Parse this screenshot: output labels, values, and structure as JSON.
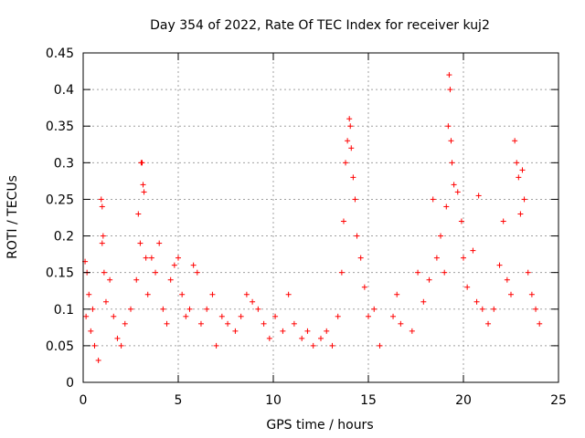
{
  "chart_data": {
    "type": "scatter",
    "title": "Day 354 of 2022, Rate Of TEC Index for receiver kuj2",
    "xlabel": "GPS time / hours",
    "ylabel": "ROTI / TECUs",
    "xlim": [
      0,
      25
    ],
    "ylim": [
      0,
      0.45
    ],
    "xticks": [
      0,
      5,
      10,
      15,
      20,
      25
    ],
    "xtick_labels": [
      "0",
      "5",
      "10",
      "15",
      "20",
      "25"
    ],
    "yticks": [
      0,
      0.05,
      0.1,
      0.15,
      0.2,
      0.25,
      0.3,
      0.35,
      0.4,
      0.45
    ],
    "ytick_labels": [
      "0",
      "0.05",
      "0.1",
      "0.15",
      "0.2",
      "0.25",
      "0.3",
      "0.35",
      "0.4",
      "0.45"
    ],
    "grid": true,
    "marker": "+",
    "marker_color": "#ff0000",
    "series": [
      {
        "name": "ROTI",
        "points": [
          [
            0.1,
            0.165
          ],
          [
            0.2,
            0.15
          ],
          [
            0.3,
            0.12
          ],
          [
            0.15,
            0.09
          ],
          [
            0.4,
            0.07
          ],
          [
            0.5,
            0.1
          ],
          [
            0.6,
            0.05
          ],
          [
            0.8,
            0.03
          ],
          [
            0.95,
            0.25
          ],
          [
            1.0,
            0.24
          ],
          [
            1.05,
            0.2
          ],
          [
            1.0,
            0.19
          ],
          [
            1.1,
            0.15
          ],
          [
            1.2,
            0.11
          ],
          [
            1.4,
            0.14
          ],
          [
            1.6,
            0.09
          ],
          [
            1.8,
            0.06
          ],
          [
            2.0,
            0.05
          ],
          [
            2.2,
            0.08
          ],
          [
            2.5,
            0.1
          ],
          [
            2.8,
            0.14
          ],
          [
            2.9,
            0.23
          ],
          [
            3.0,
            0.19
          ],
          [
            3.05,
            0.3
          ],
          [
            3.1,
            0.3
          ],
          [
            3.15,
            0.27
          ],
          [
            3.2,
            0.26
          ],
          [
            3.3,
            0.17
          ],
          [
            3.4,
            0.12
          ],
          [
            3.6,
            0.17
          ],
          [
            3.8,
            0.15
          ],
          [
            4.0,
            0.19
          ],
          [
            4.2,
            0.1
          ],
          [
            4.4,
            0.08
          ],
          [
            4.6,
            0.14
          ],
          [
            4.8,
            0.16
          ],
          [
            5.0,
            0.17
          ],
          [
            5.2,
            0.12
          ],
          [
            5.4,
            0.09
          ],
          [
            5.6,
            0.1
          ],
          [
            5.8,
            0.16
          ],
          [
            6.0,
            0.15
          ],
          [
            6.2,
            0.08
          ],
          [
            6.5,
            0.1
          ],
          [
            6.8,
            0.12
          ],
          [
            7.0,
            0.05
          ],
          [
            7.3,
            0.09
          ],
          [
            7.6,
            0.08
          ],
          [
            8.0,
            0.07
          ],
          [
            8.3,
            0.09
          ],
          [
            8.6,
            0.12
          ],
          [
            8.9,
            0.11
          ],
          [
            9.2,
            0.1
          ],
          [
            9.5,
            0.08
          ],
          [
            9.8,
            0.06
          ],
          [
            10.1,
            0.09
          ],
          [
            10.5,
            0.07
          ],
          [
            10.8,
            0.12
          ],
          [
            11.1,
            0.08
          ],
          [
            11.5,
            0.06
          ],
          [
            11.8,
            0.07
          ],
          [
            12.1,
            0.05
          ],
          [
            12.5,
            0.06
          ],
          [
            12.8,
            0.07
          ],
          [
            13.1,
            0.05
          ],
          [
            13.4,
            0.09
          ],
          [
            13.6,
            0.15
          ],
          [
            13.7,
            0.22
          ],
          [
            13.8,
            0.3
          ],
          [
            13.9,
            0.33
          ],
          [
            14.0,
            0.36
          ],
          [
            14.05,
            0.35
          ],
          [
            14.1,
            0.32
          ],
          [
            14.2,
            0.28
          ],
          [
            14.3,
            0.25
          ],
          [
            14.4,
            0.2
          ],
          [
            14.6,
            0.17
          ],
          [
            14.8,
            0.13
          ],
          [
            15.0,
            0.09
          ],
          [
            15.3,
            0.1
          ],
          [
            15.6,
            0.05
          ],
          [
            16.3,
            0.09
          ],
          [
            16.5,
            0.12
          ],
          [
            16.7,
            0.08
          ],
          [
            17.3,
            0.07
          ],
          [
            17.6,
            0.15
          ],
          [
            17.9,
            0.11
          ],
          [
            18.2,
            0.14
          ],
          [
            18.4,
            0.25
          ],
          [
            18.6,
            0.17
          ],
          [
            18.8,
            0.2
          ],
          [
            19.0,
            0.15
          ],
          [
            19.1,
            0.24
          ],
          [
            19.2,
            0.35
          ],
          [
            19.25,
            0.42
          ],
          [
            19.3,
            0.4
          ],
          [
            19.35,
            0.33
          ],
          [
            19.4,
            0.3
          ],
          [
            19.5,
            0.27
          ],
          [
            19.7,
            0.26
          ],
          [
            19.9,
            0.22
          ],
          [
            20.0,
            0.17
          ],
          [
            20.2,
            0.13
          ],
          [
            20.5,
            0.18
          ],
          [
            20.7,
            0.11
          ],
          [
            20.8,
            0.255
          ],
          [
            21.0,
            0.1
          ],
          [
            21.3,
            0.08
          ],
          [
            21.6,
            0.1
          ],
          [
            21.9,
            0.16
          ],
          [
            22.1,
            0.22
          ],
          [
            22.3,
            0.14
          ],
          [
            22.5,
            0.12
          ],
          [
            22.7,
            0.33
          ],
          [
            22.8,
            0.3
          ],
          [
            22.9,
            0.28
          ],
          [
            23.0,
            0.23
          ],
          [
            23.1,
            0.29
          ],
          [
            23.2,
            0.25
          ],
          [
            23.4,
            0.15
          ],
          [
            23.6,
            0.12
          ],
          [
            23.8,
            0.1
          ],
          [
            24.0,
            0.08
          ]
        ]
      }
    ]
  }
}
